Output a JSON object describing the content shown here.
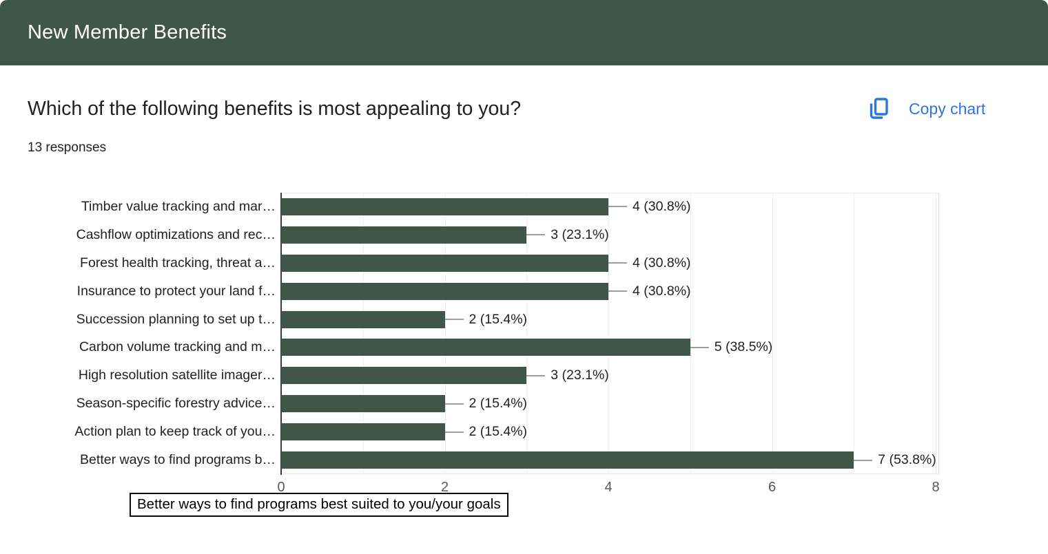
{
  "header": {
    "title": "New Member Benefits"
  },
  "question": {
    "title": "Which of the following benefits is most appealing to you?",
    "responses": "13 responses"
  },
  "toolbar": {
    "copy_chart_label": "Copy chart"
  },
  "colors": {
    "header_bg": "#41564B",
    "bar": "#41564B",
    "accent_blue": "#2f73e1",
    "callout_line": "#9e9e9e",
    "gridline": "#efefef",
    "axis_line": "#37393b"
  },
  "tooltip": {
    "text": "Better ways to find programs best suited to you/your goals"
  },
  "chart_data": {
    "type": "bar",
    "orientation": "horizontal",
    "title": "Which of the following benefits is most appealing to you?",
    "total_responses": 13,
    "categories": [
      "Timber value tracking and mar…",
      "Cashflow optimizations and rec…",
      "Forest health tracking, threat a…",
      "Insurance to protect your land f…",
      "Succession planning to set up t…",
      "Carbon volume tracking and m…",
      "High resolution satellite imager…",
      "Season-specific forestry advice…",
      "Action plan to keep track of you…",
      "Better ways to find programs b…"
    ],
    "values": [
      4,
      3,
      4,
      4,
      2,
      5,
      3,
      2,
      2,
      7
    ],
    "percentages": [
      30.8,
      23.1,
      30.8,
      30.8,
      15.4,
      38.5,
      23.1,
      15.4,
      15.4,
      53.8
    ],
    "point_labels": [
      "4 (30.8%)",
      "3 (23.1%)",
      "4 (30.8%)",
      "4 (30.8%)",
      "2 (15.4%)",
      "5 (38.5%)",
      "3 (23.1%)",
      "2 (15.4%)",
      "2 (15.4%)",
      "7 (53.8%)"
    ],
    "xlim": [
      0,
      8
    ],
    "x_ticks": [
      "0",
      "2",
      "4",
      "6",
      "8"
    ],
    "grid": true,
    "legend": "none",
    "hovered_category_full_text": "Better ways to find programs best suited to you/your goals"
  }
}
